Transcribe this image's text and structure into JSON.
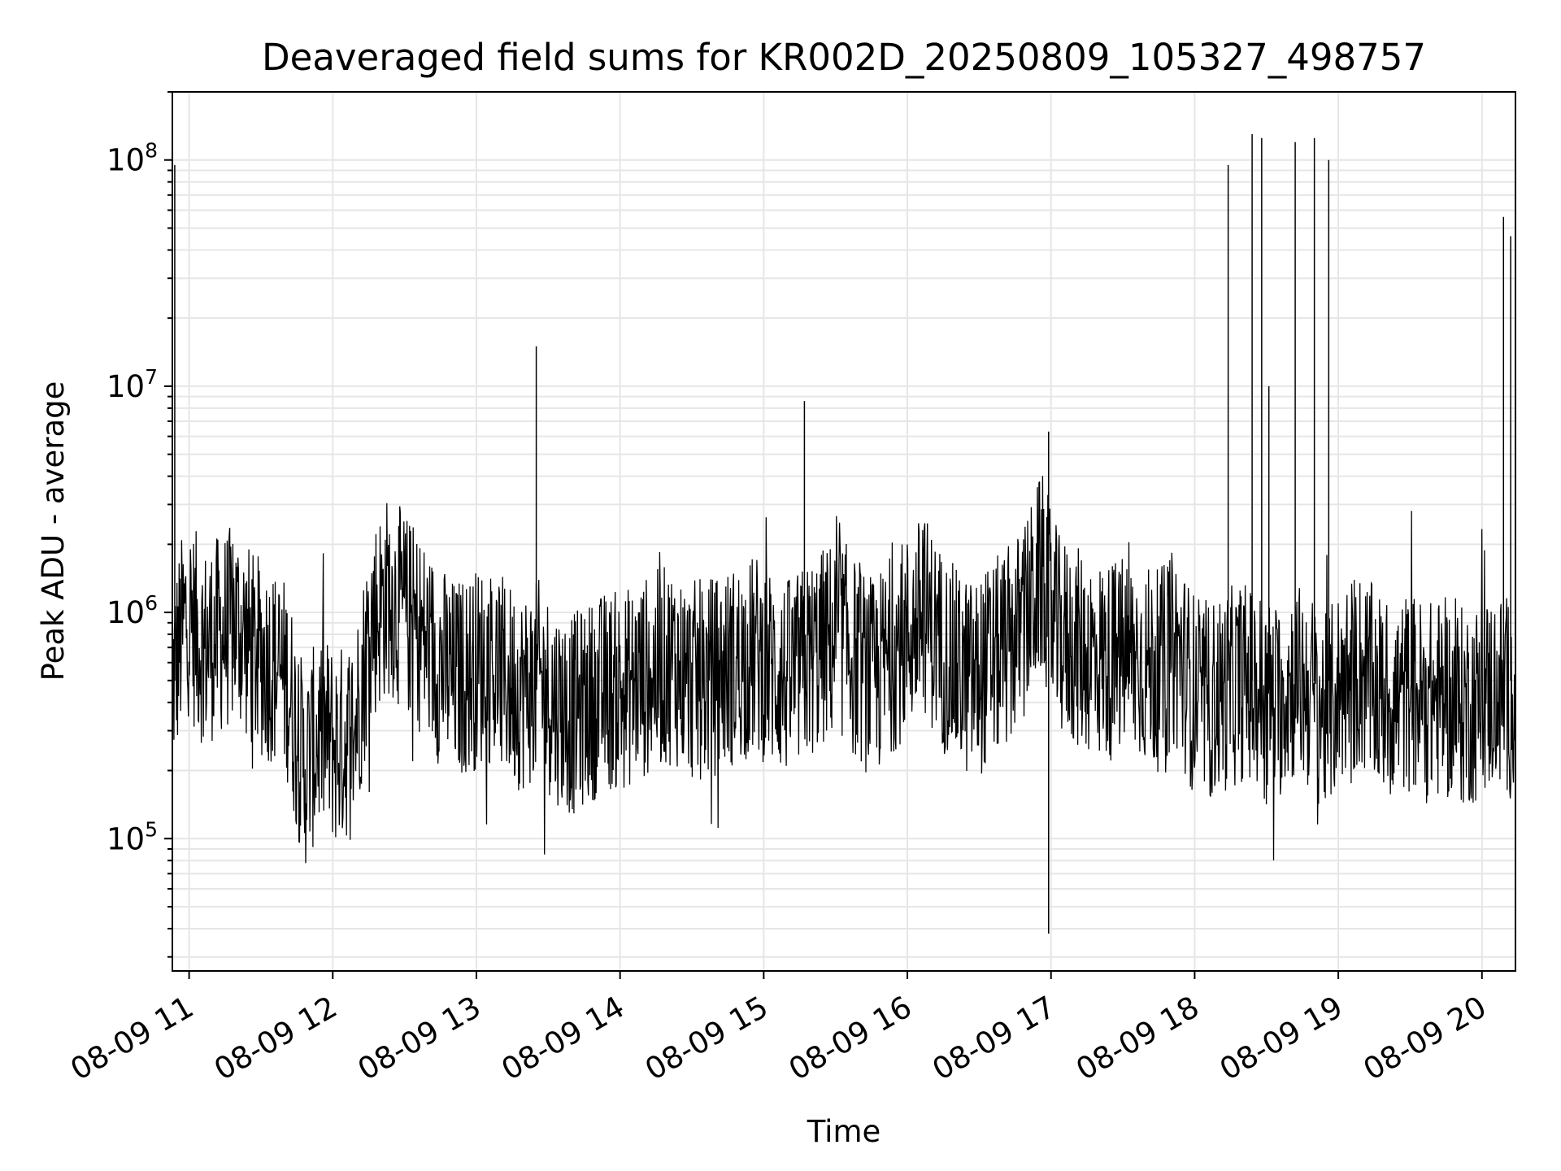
{
  "chart_data": {
    "type": "line",
    "title": "Deaveraged field sums for KR002D_20250809_105327_498757",
    "xlabel": "Time",
    "ylabel": "Peak ADU - average",
    "x_scale": "time",
    "y_scale": "log",
    "xlim": [
      "2025-08-09T10:53",
      "2025-08-09T20:14"
    ],
    "ylim": [
      26000,
      200000000
    ],
    "x_tick_labels": [
      "08-09 11",
      "08-09 12",
      "08-09 13",
      "08-09 14",
      "08-09 15",
      "08-09 16",
      "08-09 17",
      "08-09 18",
      "08-09 19",
      "08-09 20"
    ],
    "x_tick_values": [
      "2025-08-09T11:00",
      "2025-08-09T12:00",
      "2025-08-09T13:00",
      "2025-08-09T14:00",
      "2025-08-09T15:00",
      "2025-08-09T16:00",
      "2025-08-09T17:00",
      "2025-08-09T18:00",
      "2025-08-09T19:00",
      "2025-08-09T20:00"
    ],
    "y_ticks": [
      {
        "value": 100000,
        "base": "10",
        "exponent": "5"
      },
      {
        "value": 1000000,
        "base": "10",
        "exponent": "6"
      },
      {
        "value": 10000000,
        "base": "10",
        "exponent": "7"
      },
      {
        "value": 100000000,
        "base": "10",
        "exponent": "8"
      }
    ],
    "grid": true,
    "line_color": "#000000",
    "grid_color": "#e6e6e6",
    "series": [
      {
        "x": [
          "2025-08-09T10:53",
          "2025-08-09T10:59",
          "2025-08-09T11:06",
          "2025-08-09T11:13",
          "2025-08-09T11:20",
          "2025-08-09T11:27",
          "2025-08-09T11:34",
          "2025-08-09T11:41",
          "2025-08-09T11:48",
          "2025-08-09T11:55",
          "2025-08-09T12:02",
          "2025-08-09T12:09",
          "2025-08-09T12:16",
          "2025-08-09T12:23",
          "2025-08-09T12:30",
          "2025-08-09T12:37",
          "2025-08-09T12:44",
          "2025-08-09T12:51",
          "2025-08-09T12:58",
          "2025-08-09T13:05",
          "2025-08-09T13:12",
          "2025-08-09T13:19",
          "2025-08-09T13:26",
          "2025-08-09T13:33",
          "2025-08-09T13:40",
          "2025-08-09T13:47",
          "2025-08-09T13:54",
          "2025-08-09T14:01",
          "2025-08-09T14:08",
          "2025-08-09T14:15",
          "2025-08-09T14:22",
          "2025-08-09T14:29",
          "2025-08-09T14:36",
          "2025-08-09T14:43",
          "2025-08-09T14:50",
          "2025-08-09T14:57",
          "2025-08-09T15:04",
          "2025-08-09T15:11",
          "2025-08-09T15:18",
          "2025-08-09T15:25",
          "2025-08-09T15:32",
          "2025-08-09T15:39",
          "2025-08-09T15:46",
          "2025-08-09T15:53",
          "2025-08-09T16:00",
          "2025-08-09T16:07",
          "2025-08-09T16:14",
          "2025-08-09T16:21",
          "2025-08-09T16:28",
          "2025-08-09T16:35",
          "2025-08-09T16:42",
          "2025-08-09T16:49",
          "2025-08-09T16:56",
          "2025-08-09T17:03",
          "2025-08-09T17:10",
          "2025-08-09T17:17",
          "2025-08-09T17:24",
          "2025-08-09T17:31",
          "2025-08-09T17:38",
          "2025-08-09T17:45",
          "2025-08-09T17:52",
          "2025-08-09T17:59",
          "2025-08-09T18:06",
          "2025-08-09T18:13",
          "2025-08-09T18:20",
          "2025-08-09T18:27",
          "2025-08-09T18:34",
          "2025-08-09T18:41",
          "2025-08-09T18:48",
          "2025-08-09T18:55",
          "2025-08-09T19:02",
          "2025-08-09T19:09",
          "2025-08-09T19:16",
          "2025-08-09T19:23",
          "2025-08-09T19:30",
          "2025-08-09T19:37",
          "2025-08-09T19:44",
          "2025-08-09T19:51",
          "2025-08-09T19:58",
          "2025-08-09T20:05",
          "2025-08-09T20:12"
        ],
        "y": [
          500000,
          1000000,
          700000,
          800000,
          900000,
          650000,
          600000,
          500000,
          200000,
          300000,
          250000,
          300000,
          900000,
          1200000,
          1000000,
          800000,
          600000,
          500000,
          550000,
          600000,
          500000,
          450000,
          500000,
          400000,
          350000,
          400000,
          450000,
          450000,
          500000,
          550000,
          600000,
          500000,
          500000,
          550000,
          600000,
          650000,
          550000,
          500000,
          600000,
          700000,
          800000,
          600000,
          500000,
          650000,
          800000,
          1000000,
          700000,
          550000,
          500000,
          600000,
          700000,
          900000,
          1500000,
          800000,
          700000,
          650000,
          600000,
          650000,
          600000,
          550000,
          700000,
          450000,
          400000,
          450000,
          500000,
          450000,
          400000,
          500000,
          450000,
          350000,
          500000,
          550000,
          450000,
          400000,
          450000,
          400000,
          420000,
          380000,
          400000,
          450000,
          420000
        ],
        "spikes": [
          {
            "x": "2025-08-09T13:25",
            "y": 15000000
          },
          {
            "x": "2025-08-09T15:17",
            "y": 8600000
          },
          {
            "x": "2025-08-09T16:59",
            "y": 6300000
          },
          {
            "x": "2025-08-09T18:14",
            "y": 95000000
          },
          {
            "x": "2025-08-09T18:24",
            "y": 130000000
          },
          {
            "x": "2025-08-09T18:28",
            "y": 125000000
          },
          {
            "x": "2025-08-09T18:31",
            "y": 10000000
          },
          {
            "x": "2025-08-09T18:42",
            "y": 120000000
          },
          {
            "x": "2025-08-09T18:50",
            "y": 125000000
          },
          {
            "x": "2025-08-09T18:56",
            "y": 100000000
          },
          {
            "x": "2025-08-09T20:09",
            "y": 56000000
          },
          {
            "x": "2025-08-09T20:12",
            "y": 46000000
          },
          {
            "x": "2025-08-09T20:14",
            "y": 40000000
          },
          {
            "x": "2025-08-09T10:54",
            "y": 95000000
          },
          {
            "x": "2025-08-09T16:59",
            "y": 38000
          }
        ]
      }
    ]
  }
}
